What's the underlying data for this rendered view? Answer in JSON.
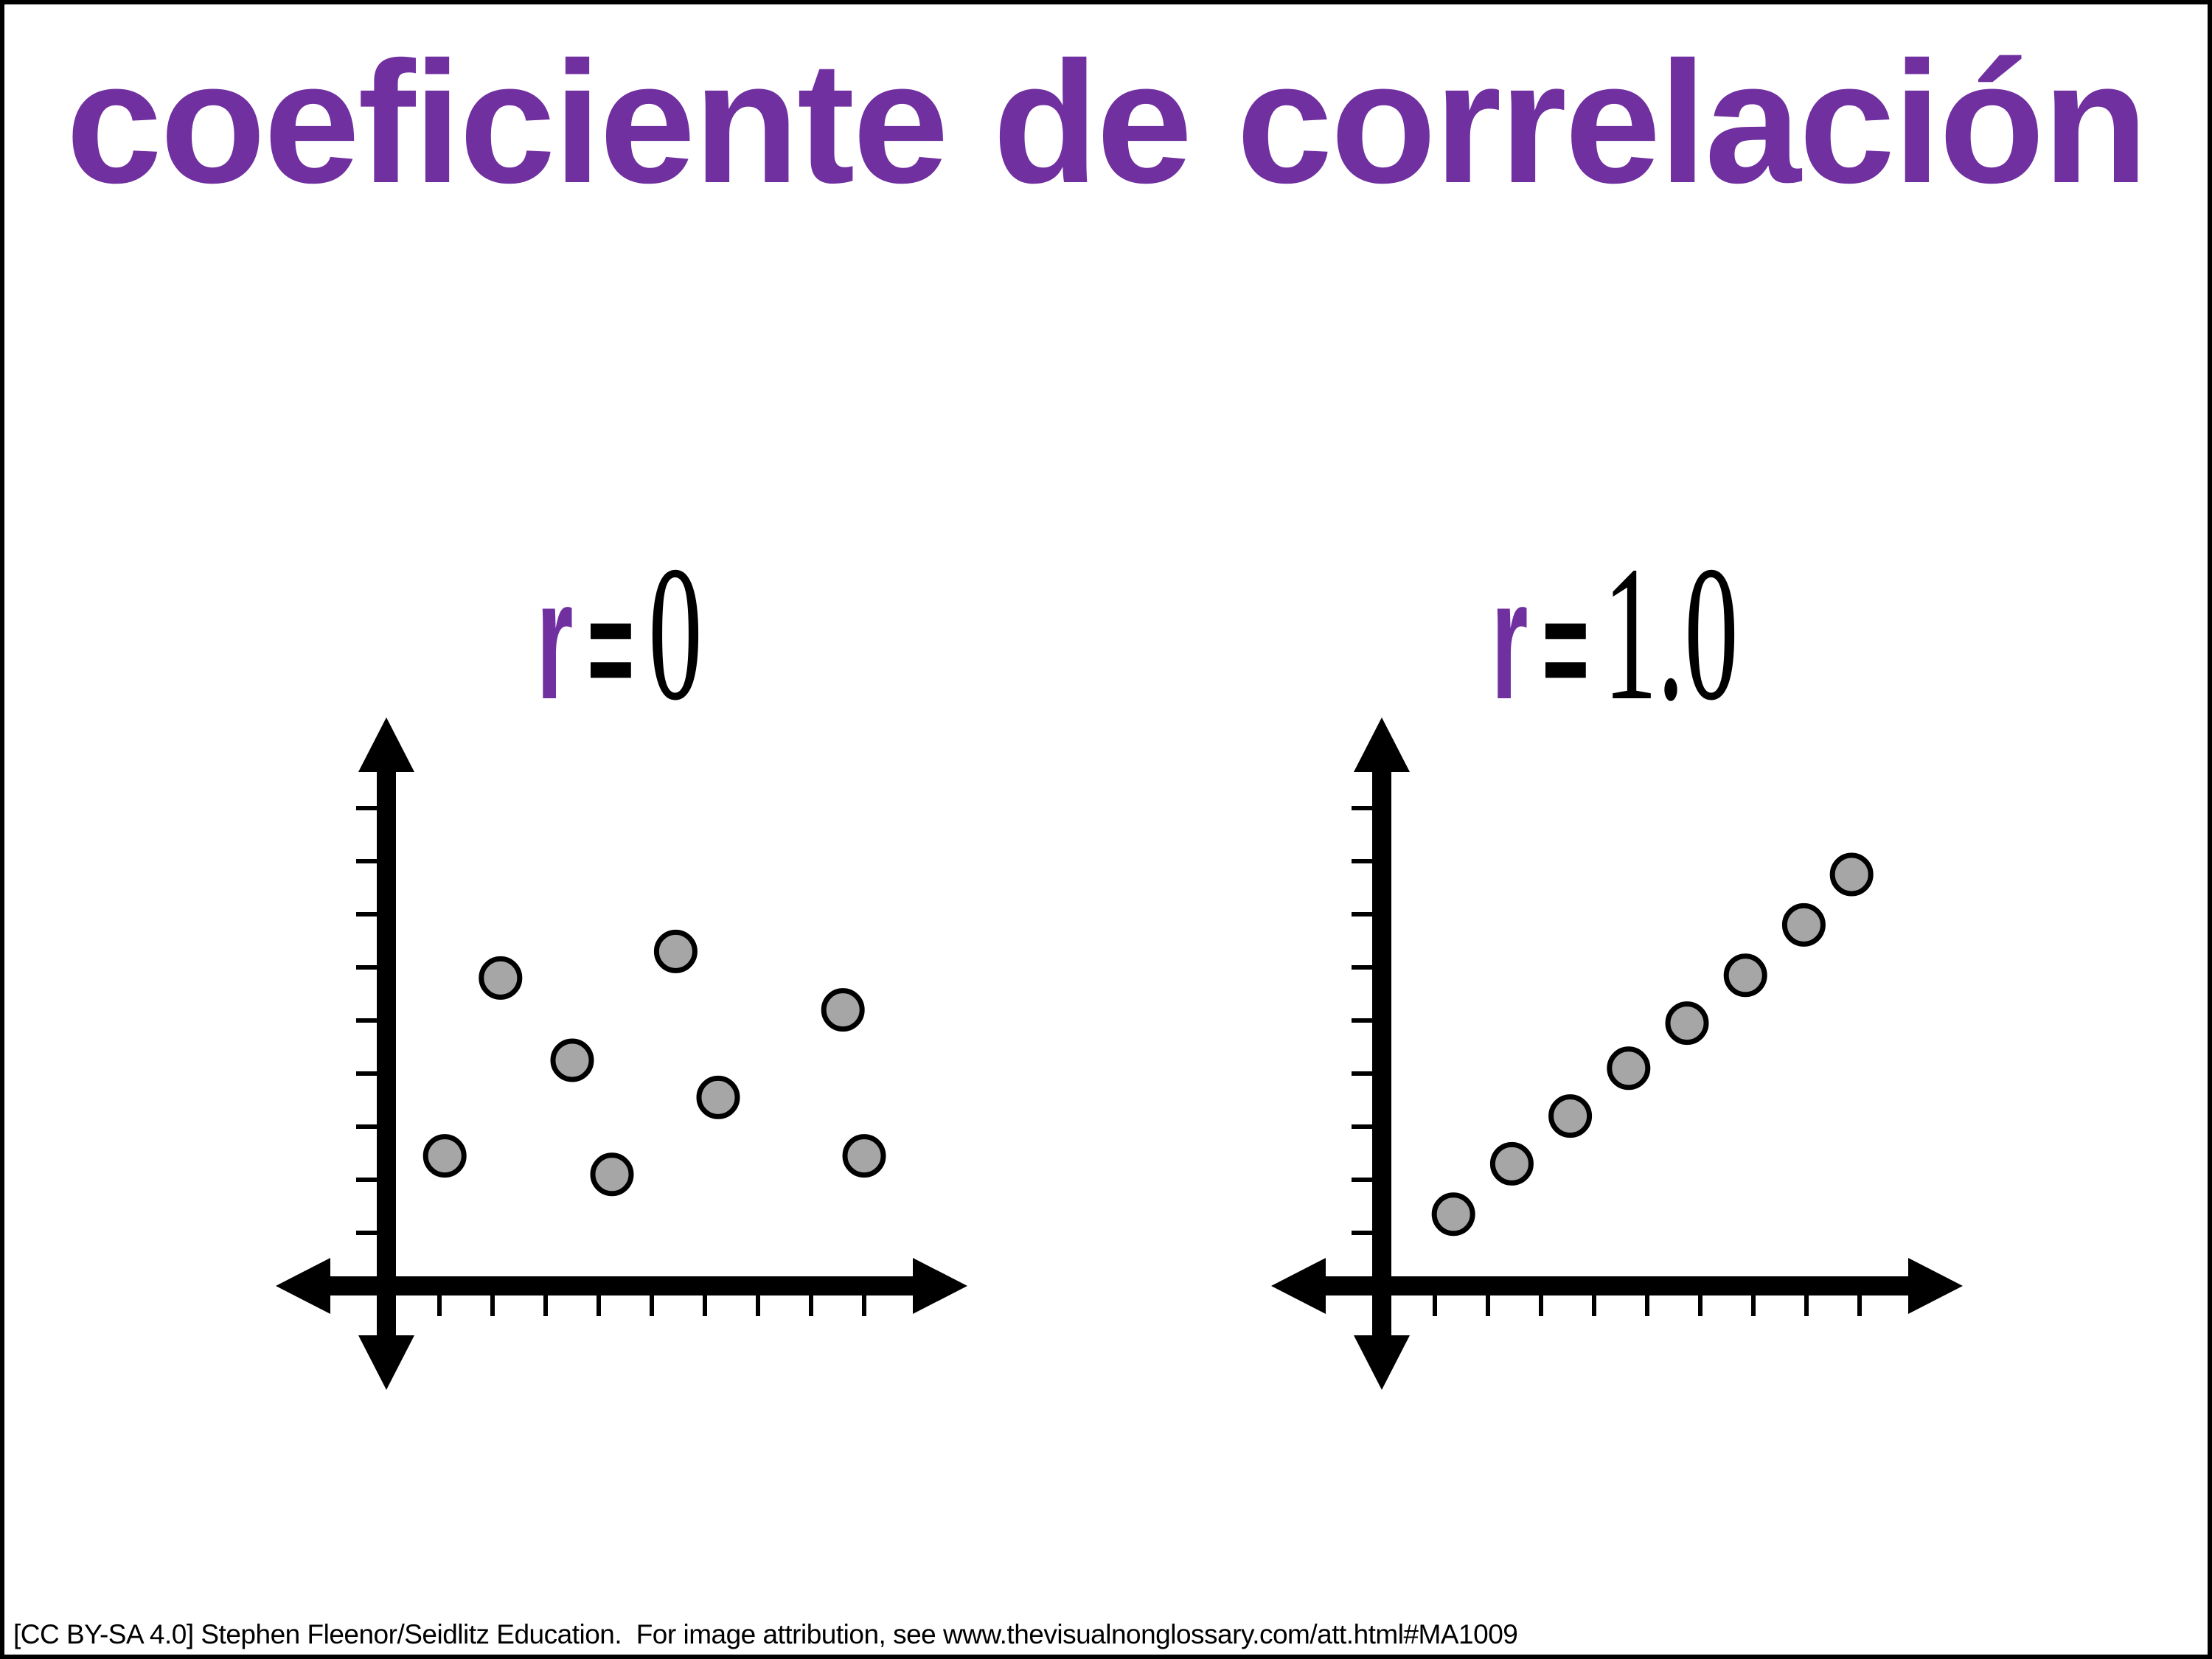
{
  "page": {
    "title": "coeficiente de correlación",
    "footer": "[CC BY-SA 4.0] Stephen Fleenor/Seidlitz Education.  For image attribution, see www.thevisualnonglossary.com/att.html#MA1009",
    "colors": {
      "title_purple": "#7030A0",
      "r_symbol_purple": "#7030A0",
      "label_black": "#000000",
      "axis_black": "#000000",
      "dot_fill_gray": "#A6A6A6",
      "dot_stroke": "#000000",
      "background": "#ffffff",
      "page_border": "#000000"
    }
  },
  "chart_data": [
    {
      "type": "scatter",
      "title": "r = 0",
      "label": {
        "variable": "r",
        "equals": "=",
        "value": "0"
      },
      "correlation_description": "no correlation, randomly scattered points",
      "xlabel": "",
      "ylabel": "",
      "axis_numbers_shown": false,
      "grid": false,
      "x_tick_count": 9,
      "y_tick_count": 9,
      "x_range": [
        0,
        10
      ],
      "y_range": [
        0,
        10
      ],
      "points": [
        [
          2.15,
          5.8
        ],
        [
          5.45,
          6.3
        ],
        [
          8.6,
          5.2
        ],
        [
          3.5,
          4.25
        ],
        [
          6.25,
          3.55
        ],
        [
          1.1,
          2.45
        ],
        [
          4.25,
          2.1
        ],
        [
          9.0,
          2.45
        ]
      ]
    },
    {
      "type": "scatter",
      "title": "r = 1.0",
      "label": {
        "variable": "r",
        "equals": "=",
        "value": "1.0"
      },
      "correlation_description": "perfect positive linear correlation, points on a straight rising line",
      "xlabel": "",
      "ylabel": "",
      "axis_numbers_shown": false,
      "grid": false,
      "x_tick_count": 9,
      "y_tick_count": 9,
      "x_range": [
        0,
        10
      ],
      "y_range": [
        0,
        10
      ],
      "points": [
        [
          1.35,
          1.35
        ],
        [
          2.45,
          2.3
        ],
        [
          3.55,
          3.2
        ],
        [
          4.65,
          4.1
        ],
        [
          5.75,
          4.95
        ],
        [
          6.85,
          5.85
        ],
        [
          7.95,
          6.8
        ],
        [
          8.85,
          7.75
        ]
      ]
    }
  ]
}
